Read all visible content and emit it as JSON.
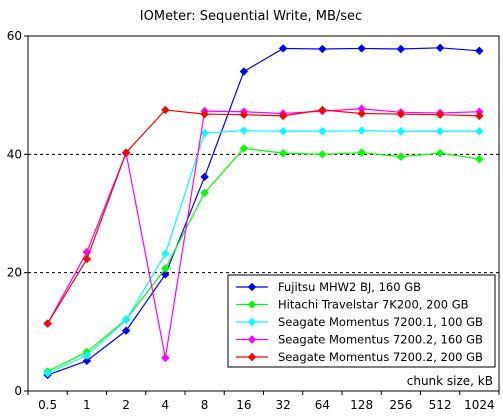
{
  "chart_data": {
    "type": "line",
    "title": "IOMeter: Sequential  Write, MB/sec",
    "xlabel": "chunk size, kB",
    "ylabel": "",
    "categories": [
      "0.5",
      "1",
      "2",
      "4",
      "8",
      "16",
      "32",
      "64",
      "128",
      "256",
      "512",
      "1024"
    ],
    "ylim": [
      0,
      60
    ],
    "yticks": [
      0,
      20,
      40,
      60
    ],
    "grid": "horizontal dashed at 20 and 40",
    "legend_position": "bottom-right",
    "series": [
      {
        "name": "Fujitsu MHW2 BJ, 160 GB",
        "color": "#0000ff",
        "values": [
          2.7,
          5.1,
          10.2,
          19.7,
          36.2,
          54.0,
          57.9,
          57.8,
          57.9,
          57.8,
          58.0,
          57.5
        ]
      },
      {
        "name": "Hitachi Travelstar 7K200, 200 GB",
        "color": "#00ff00",
        "values": [
          3.3,
          6.6,
          12.1,
          20.7,
          33.5,
          41.0,
          40.2,
          40.0,
          40.3,
          39.6,
          40.2,
          39.2
        ]
      },
      {
        "name": "Seagate Momentus 7200.1, 100 GB",
        "color": "#00ffff",
        "values": [
          3.0,
          6.0,
          12.0,
          23.2,
          43.6,
          44.0,
          43.9,
          43.9,
          44.0,
          43.9,
          43.9,
          43.9
        ]
      },
      {
        "name": "Seagate Momentus 7200.2, 160 GB",
        "color": "#ff00ff",
        "values": [
          11.4,
          23.5,
          40.2,
          5.6,
          47.3,
          47.2,
          46.9,
          47.3,
          47.7,
          47.1,
          47.0,
          47.2
        ]
      },
      {
        "name": "Seagate Momentus 7200.2, 200 GB",
        "color": "#ff0000",
        "values": [
          11.4,
          22.3,
          40.3,
          47.5,
          46.8,
          46.7,
          46.5,
          47.5,
          46.9,
          46.8,
          46.7,
          46.5
        ]
      }
    ]
  }
}
